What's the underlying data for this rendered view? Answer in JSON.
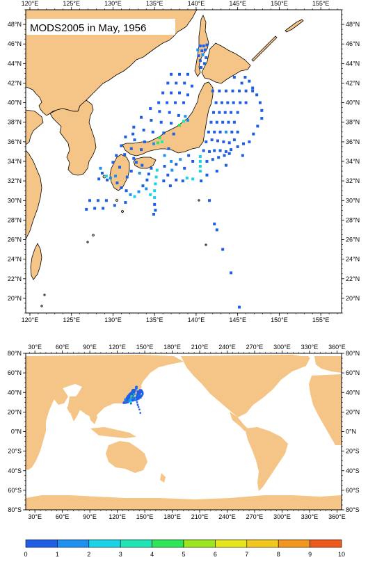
{
  "title": "MODS2005 in May, 1956",
  "colors": {
    "land": "#f5c587",
    "ocean": "#ffffff",
    "frame": "#000000"
  },
  "top_map": {
    "lon_range": [
      119.5,
      157.5
    ],
    "lat_range": [
      18.5,
      49.5
    ],
    "lon_ticks": [
      120,
      125,
      130,
      135,
      140,
      145,
      150,
      155
    ],
    "lon_labels": [
      "120°E",
      "125°E",
      "130°E",
      "135°E",
      "140°E",
      "145°E",
      "150°E",
      "155°E"
    ],
    "lat_ticks": [
      20,
      22,
      24,
      26,
      28,
      30,
      32,
      34,
      36,
      38,
      40,
      42,
      44,
      46,
      48
    ],
    "lat_labels": [
      "20°N",
      "22°N",
      "24°N",
      "26°N",
      "28°N",
      "30°N",
      "32°N",
      "34°N",
      "36°N",
      "38°N",
      "40°N",
      "42°N",
      "44°N",
      "46°N",
      "48°N"
    ]
  },
  "bottom_map": {
    "lon_range": [
      20,
      365
    ],
    "lat_range": [
      -80,
      80
    ],
    "lon_ticks": [
      30,
      60,
      90,
      120,
      150,
      180,
      210,
      240,
      270,
      300,
      330,
      360
    ],
    "lon_labels": [
      "30°E",
      "60°E",
      "90°E",
      "120°E",
      "150°E",
      "180°E",
      "210°E",
      "240°E",
      "270°E",
      "300°E",
      "330°E",
      "360°E"
    ],
    "lat_ticks": [
      -80,
      -60,
      -40,
      -20,
      0,
      20,
      40,
      60,
      80
    ],
    "lat_labels": [
      "80°S",
      "60°S",
      "40°S",
      "20°S",
      "0°N",
      "20°N",
      "40°N",
      "60°N",
      "80°N"
    ]
  },
  "colorbar": {
    "labels": [
      "0",
      "1",
      "2",
      "3",
      "4",
      "5",
      "6",
      "7",
      "8",
      "9",
      "10"
    ],
    "colors": [
      "#1f5fe6",
      "#1e90f0",
      "#19d3e6",
      "#1ee6b4",
      "#2ee65a",
      "#9be61e",
      "#e6e61e",
      "#f2c81e",
      "#f2961e",
      "#ee5a1e"
    ]
  },
  "observations": [
    [
      140.5,
      45.8,
      0
    ],
    [
      140.9,
      45.8,
      0
    ],
    [
      141.3,
      45.9,
      0
    ],
    [
      140.2,
      45.4,
      1
    ],
    [
      140.7,
      45.3,
      0
    ],
    [
      141.1,
      45.4,
      0
    ],
    [
      140.3,
      44.8,
      0
    ],
    [
      140.8,
      44.9,
      1
    ],
    [
      141.2,
      44.6,
      0
    ],
    [
      140.5,
      44.3,
      0
    ],
    [
      141.0,
      44.0,
      0
    ],
    [
      140.6,
      43.6,
      0
    ],
    [
      137.0,
      42.9,
      0
    ],
    [
      138.0,
      42.9,
      0
    ],
    [
      139.0,
      42.9,
      0
    ],
    [
      136.6,
      42.0,
      0
    ],
    [
      137.6,
      42.0,
      0
    ],
    [
      138.6,
      42.0,
      0
    ],
    [
      139.5,
      41.7,
      0
    ],
    [
      136.0,
      41.0,
      0
    ],
    [
      137.0,
      41.0,
      0
    ],
    [
      138.0,
      41.0,
      0
    ],
    [
      139.0,
      40.8,
      0
    ],
    [
      135.5,
      40.0,
      0
    ],
    [
      136.5,
      40.0,
      0
    ],
    [
      137.5,
      40.0,
      0
    ],
    [
      138.5,
      40.0,
      0
    ],
    [
      134.5,
      39.4,
      0
    ],
    [
      135.6,
      39.1,
      0
    ],
    [
      136.8,
      39.0,
      0
    ],
    [
      137.9,
      38.7,
      0
    ],
    [
      138.7,
      38.6,
      1
    ],
    [
      133.4,
      38.5,
      0
    ],
    [
      134.6,
      38.2,
      0
    ],
    [
      135.8,
      38.0,
      0
    ],
    [
      137.0,
      37.9,
      0
    ],
    [
      138.0,
      37.7,
      4
    ],
    [
      138.5,
      38.1,
      3
    ],
    [
      139.0,
      38.2,
      1
    ],
    [
      132.5,
      37.5,
      0
    ],
    [
      133.7,
      37.2,
      0
    ],
    [
      134.8,
      37.0,
      0
    ],
    [
      136.1,
      36.9,
      0
    ],
    [
      137.3,
      36.8,
      0
    ],
    [
      131.5,
      36.5,
      0
    ],
    [
      132.6,
      36.2,
      0
    ],
    [
      133.8,
      36.0,
      0
    ],
    [
      134.9,
      35.8,
      1
    ],
    [
      135.4,
      35.9,
      4
    ],
    [
      135.9,
      36.0,
      3
    ],
    [
      131.0,
      35.6,
      0
    ],
    [
      132.2,
      35.3,
      0
    ],
    [
      133.4,
      35.2,
      0
    ],
    [
      130.4,
      34.6,
      0
    ],
    [
      131.4,
      34.7,
      0
    ],
    [
      132.5,
      34.3,
      0
    ],
    [
      130.0,
      33.9,
      0
    ],
    [
      128.7,
      32.8,
      0
    ],
    [
      129.2,
      32.5,
      2
    ],
    [
      129.7,
      32.3,
      1
    ],
    [
      129.3,
      32.1,
      0
    ],
    [
      128.3,
      32.2,
      0
    ],
    [
      130.3,
      32.5,
      1
    ],
    [
      130.5,
      31.8,
      0
    ],
    [
      131.0,
      31.3,
      0
    ],
    [
      131.6,
      31.0,
      0
    ],
    [
      132.1,
      30.6,
      1
    ],
    [
      132.6,
      30.4,
      2
    ],
    [
      133.1,
      30.9,
      1
    ],
    [
      133.6,
      31.5,
      0
    ],
    [
      134.1,
      32.1,
      0
    ],
    [
      134.3,
      32.7,
      0
    ],
    [
      134.6,
      33.3,
      0
    ],
    [
      133.5,
      33.6,
      0
    ],
    [
      132.8,
      33.9,
      0
    ],
    [
      132.2,
      33.0,
      0
    ],
    [
      131.7,
      32.4,
      0
    ],
    [
      127.2,
      30.0,
      0
    ],
    [
      128.2,
      30.0,
      0
    ],
    [
      129.2,
      30.0,
      0
    ],
    [
      126.8,
      29.1,
      0
    ],
    [
      127.8,
      29.2,
      0
    ],
    [
      128.8,
      29.2,
      0
    ],
    [
      130.2,
      29.5,
      0
    ],
    [
      131.5,
      29.8,
      0
    ],
    [
      135.0,
      29.6,
      0
    ],
    [
      135.1,
      29.0,
      0
    ],
    [
      134.9,
      28.6,
      0
    ],
    [
      135.0,
      30.3,
      2
    ],
    [
      135.0,
      31.0,
      2
    ],
    [
      135.1,
      31.7,
      2
    ],
    [
      135.2,
      32.4,
      2
    ],
    [
      135.3,
      33.1,
      2
    ],
    [
      136.1,
      32.0,
      0
    ],
    [
      136.6,
      32.6,
      0
    ],
    [
      137.1,
      33.1,
      1
    ],
    [
      137.6,
      33.7,
      0
    ],
    [
      138.1,
      34.2,
      1
    ],
    [
      136.2,
      33.5,
      0
    ],
    [
      137.0,
      34.0,
      1
    ],
    [
      138.6,
      33.3,
      0
    ],
    [
      139.1,
      34.6,
      0
    ],
    [
      139.6,
      34.0,
      0
    ],
    [
      138.9,
      32.3,
      2
    ],
    [
      139.6,
      32.2,
      2
    ],
    [
      140.5,
      33.0,
      2
    ],
    [
      140.5,
      33.5,
      2
    ],
    [
      140.5,
      34.0,
      2
    ],
    [
      140.5,
      34.5,
      2
    ],
    [
      137.6,
      32.1,
      0
    ],
    [
      138.4,
      32.0,
      0
    ],
    [
      136.9,
      31.5,
      0
    ],
    [
      140.9,
      35.1,
      0
    ],
    [
      141.6,
      35.0,
      0
    ],
    [
      142.2,
      35.1,
      0
    ],
    [
      142.9,
      35.1,
      0
    ],
    [
      143.6,
      35.0,
      0
    ],
    [
      144.2,
      35.2,
      0
    ],
    [
      141.2,
      36.0,
      0
    ],
    [
      141.9,
      36.2,
      0
    ],
    [
      142.6,
      36.1,
      0
    ],
    [
      143.3,
      36.0,
      0
    ],
    [
      144.0,
      35.9,
      0
    ],
    [
      144.6,
      36.2,
      0
    ],
    [
      141.5,
      37.0,
      0
    ],
    [
      142.2,
      37.0,
      0
    ],
    [
      142.9,
      37.0,
      0
    ],
    [
      143.6,
      37.0,
      1
    ],
    [
      144.3,
      37.0,
      0
    ],
    [
      145.0,
      37.0,
      0
    ],
    [
      141.8,
      38.0,
      0
    ],
    [
      142.5,
      38.0,
      0
    ],
    [
      143.2,
      38.0,
      0
    ],
    [
      143.9,
      38.0,
      0
    ],
    [
      144.6,
      38.0,
      0
    ],
    [
      142.1,
      39.0,
      0
    ],
    [
      142.8,
      39.0,
      0
    ],
    [
      143.5,
      39.0,
      0
    ],
    [
      144.2,
      39.0,
      0
    ],
    [
      145.0,
      39.0,
      0
    ],
    [
      142.4,
      40.0,
      0
    ],
    [
      143.1,
      40.0,
      0
    ],
    [
      143.8,
      40.0,
      0
    ],
    [
      144.5,
      40.0,
      0
    ],
    [
      145.3,
      40.0,
      0
    ],
    [
      146.0,
      40.0,
      0
    ],
    [
      142.0,
      41.2,
      0
    ],
    [
      142.8,
      41.2,
      0
    ],
    [
      143.6,
      41.2,
      0
    ],
    [
      144.4,
      41.2,
      0
    ],
    [
      145.2,
      41.2,
      0
    ],
    [
      146.0,
      41.2,
      0
    ],
    [
      146.8,
      41.2,
      0
    ],
    [
      141.3,
      34.0,
      0
    ],
    [
      142.0,
      34.2,
      0
    ],
    [
      142.7,
      34.4,
      0
    ],
    [
      143.4,
      34.6,
      0
    ],
    [
      144.0,
      34.8,
      0
    ],
    [
      145.6,
      34.6,
      0
    ],
    [
      145.0,
      35.5,
      0
    ],
    [
      145.7,
      35.8,
      0
    ],
    [
      146.4,
      36.0,
      0
    ],
    [
      146.9,
      36.8,
      0
    ],
    [
      147.4,
      37.6,
      0
    ],
    [
      147.9,
      38.4,
      0
    ],
    [
      147.9,
      39.2,
      0
    ],
    [
      147.7,
      40.0,
      0
    ],
    [
      147.3,
      40.8,
      0
    ],
    [
      146.8,
      41.5,
      0
    ],
    [
      146.4,
      42.2,
      0
    ],
    [
      145.9,
      42.6,
      0
    ],
    [
      145.5,
      42.0,
      0
    ],
    [
      144.6,
      42.6,
      0
    ],
    [
      143.6,
      33.6,
      0
    ],
    [
      142.5,
      33.0,
      0
    ],
    [
      141.3,
      32.6,
      0
    ],
    [
      140.6,
      32.0,
      0
    ],
    [
      141.6,
      30.0,
      0
    ],
    [
      142.2,
      27.6,
      0
    ],
    [
      142.5,
      27.0,
      0
    ],
    [
      143.2,
      25.0,
      0
    ],
    [
      144.2,
      22.6,
      0
    ],
    [
      145.2,
      19.1,
      0
    ],
    [
      133.2,
      32.8,
      1
    ],
    [
      134.0,
      31.2,
      1
    ],
    [
      134.5,
      30.6,
      2
    ],
    [
      136.2,
      34.6,
      1
    ],
    [
      136.7,
      35.3,
      0
    ],
    [
      135.6,
      36.4,
      4
    ],
    [
      132.4,
      36.8,
      0
    ],
    [
      130.8,
      33.4,
      0
    ],
    [
      128.5,
      33.3,
      1
    ]
  ]
}
